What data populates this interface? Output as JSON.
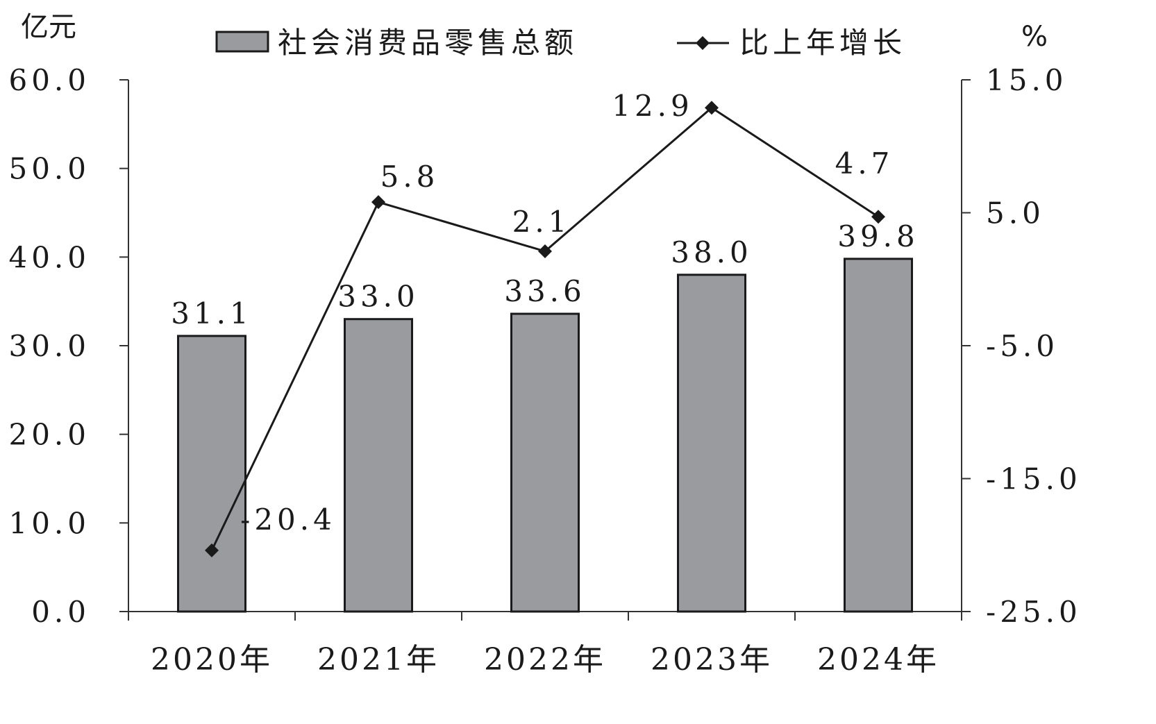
{
  "chart_data": {
    "type": "bar",
    "categories": [
      "2020年",
      "2021年",
      "2022年",
      "2023年",
      "2024年"
    ],
    "left_unit": "亿元",
    "right_unit": "%",
    "ylim_left": [
      0,
      60
    ],
    "ylim_right": [
      -25,
      15
    ],
    "left_ticks": [
      "0.0",
      "10.0",
      "20.0",
      "30.0",
      "40.0",
      "50.0",
      "60.0"
    ],
    "right_ticks": [
      "-25.0",
      "-15.0",
      "-5.0",
      "5.0",
      "15.0"
    ],
    "legend_position": "top",
    "series": [
      {
        "name": "社会消费品零售总额",
        "type": "bar",
        "axis": "left",
        "values": [
          31.1,
          33.0,
          33.6,
          38.0,
          39.8
        ],
        "labels": [
          "31.1",
          "33.0",
          "33.6",
          "38.0",
          "39.8"
        ],
        "color": "#999b9e"
      },
      {
        "name": "比上年增长",
        "type": "line",
        "axis": "right",
        "values": [
          -20.4,
          5.8,
          2.1,
          12.9,
          4.7
        ],
        "labels": [
          "-20.4",
          "5.8",
          "2.1",
          "12.9",
          "4.7"
        ],
        "color": "#1a1a1a",
        "marker": "diamond"
      }
    ]
  }
}
